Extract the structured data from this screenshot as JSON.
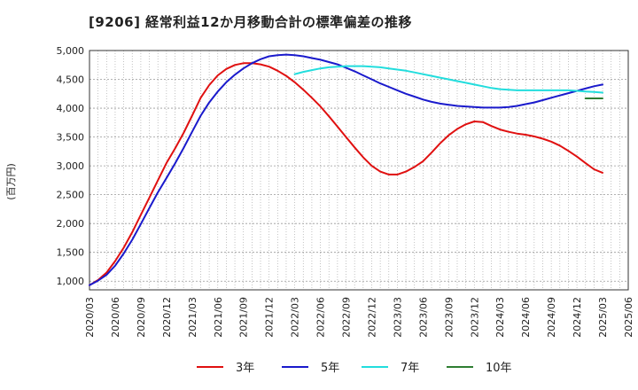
{
  "title": "[9206]  経常利益12か月移動合計の標準偏差の推移",
  "chart_data": {
    "type": "line",
    "title": "[9206]  経常利益12か月移動合計の標準偏差の推移",
    "ylabel": "(百万円)",
    "xlabel": "",
    "ylim": [
      850,
      5000
    ],
    "y_ticks": [
      1000,
      1500,
      2000,
      2500,
      3000,
      3500,
      4000,
      4500,
      5000
    ],
    "y_tick_labels": [
      "1,000",
      "1,500",
      "2,000",
      "2,500",
      "3,000",
      "3,500",
      "4,000",
      "4,500",
      "5,000"
    ],
    "x_ticks": [
      "2020/03",
      "2020/06",
      "2020/09",
      "2020/12",
      "2021/03",
      "2021/06",
      "2021/09",
      "2021/12",
      "2022/03",
      "2022/06",
      "2022/09",
      "2022/12",
      "2023/03",
      "2023/06",
      "2023/09",
      "2023/12",
      "2024/03",
      "2024/06",
      "2024/09",
      "2024/12",
      "2025/03",
      "2025/06"
    ],
    "grid": true,
    "legend_position": "bottom",
    "series": [
      {
        "name": "3年",
        "color": "#e01010",
        "points": [
          [
            "2020/03",
            930
          ],
          [
            "2020/04",
            1020
          ],
          [
            "2020/05",
            1150
          ],
          [
            "2020/06",
            1350
          ],
          [
            "2020/07",
            1580
          ],
          [
            "2020/08",
            1850
          ],
          [
            "2020/09",
            2150
          ],
          [
            "2020/10",
            2450
          ],
          [
            "2020/11",
            2750
          ],
          [
            "2020/12",
            3050
          ],
          [
            "2021/01",
            3300
          ],
          [
            "2021/02",
            3570
          ],
          [
            "2021/03",
            3870
          ],
          [
            "2021/04",
            4180
          ],
          [
            "2021/05",
            4400
          ],
          [
            "2021/06",
            4570
          ],
          [
            "2021/07",
            4680
          ],
          [
            "2021/08",
            4750
          ],
          [
            "2021/09",
            4780
          ],
          [
            "2021/10",
            4780
          ],
          [
            "2021/11",
            4760
          ],
          [
            "2021/12",
            4720
          ],
          [
            "2022/01",
            4650
          ],
          [
            "2022/02",
            4560
          ],
          [
            "2022/03",
            4450
          ],
          [
            "2022/04",
            4320
          ],
          [
            "2022/05",
            4180
          ],
          [
            "2022/06",
            4030
          ],
          [
            "2022/07",
            3860
          ],
          [
            "2022/08",
            3680
          ],
          [
            "2022/09",
            3500
          ],
          [
            "2022/10",
            3320
          ],
          [
            "2022/11",
            3150
          ],
          [
            "2022/12",
            3000
          ],
          [
            "2023/01",
            2900
          ],
          [
            "2023/02",
            2850
          ],
          [
            "2023/03",
            2850
          ],
          [
            "2023/04",
            2900
          ],
          [
            "2023/05",
            2980
          ],
          [
            "2023/06",
            3080
          ],
          [
            "2023/07",
            3230
          ],
          [
            "2023/08",
            3390
          ],
          [
            "2023/09",
            3530
          ],
          [
            "2023/10",
            3640
          ],
          [
            "2023/11",
            3720
          ],
          [
            "2023/12",
            3770
          ],
          [
            "2024/01",
            3760
          ],
          [
            "2024/02",
            3690
          ],
          [
            "2024/03",
            3630
          ],
          [
            "2024/04",
            3590
          ],
          [
            "2024/05",
            3560
          ],
          [
            "2024/06",
            3540
          ],
          [
            "2024/07",
            3510
          ],
          [
            "2024/08",
            3470
          ],
          [
            "2024/09",
            3420
          ],
          [
            "2024/10",
            3350
          ],
          [
            "2024/11",
            3260
          ],
          [
            "2024/12",
            3160
          ],
          [
            "2025/01",
            3050
          ],
          [
            "2025/02",
            2940
          ],
          [
            "2025/03",
            2880
          ]
        ]
      },
      {
        "name": "5年",
        "color": "#1a1acc",
        "points": [
          [
            "2020/03",
            930
          ],
          [
            "2020/04",
            1010
          ],
          [
            "2020/05",
            1110
          ],
          [
            "2020/06",
            1270
          ],
          [
            "2020/07",
            1480
          ],
          [
            "2020/08",
            1720
          ],
          [
            "2020/09",
            1990
          ],
          [
            "2020/10",
            2270
          ],
          [
            "2020/11",
            2540
          ],
          [
            "2020/12",
            2790
          ],
          [
            "2021/01",
            3040
          ],
          [
            "2021/02",
            3310
          ],
          [
            "2021/03",
            3590
          ],
          [
            "2021/04",
            3870
          ],
          [
            "2021/05",
            4100
          ],
          [
            "2021/06",
            4290
          ],
          [
            "2021/07",
            4450
          ],
          [
            "2021/08",
            4580
          ],
          [
            "2021/09",
            4690
          ],
          [
            "2021/10",
            4780
          ],
          [
            "2021/11",
            4850
          ],
          [
            "2021/12",
            4900
          ],
          [
            "2022/01",
            4920
          ],
          [
            "2022/02",
            4930
          ],
          [
            "2022/03",
            4920
          ],
          [
            "2022/04",
            4900
          ],
          [
            "2022/05",
            4870
          ],
          [
            "2022/06",
            4840
          ],
          [
            "2022/07",
            4800
          ],
          [
            "2022/08",
            4760
          ],
          [
            "2022/09",
            4700
          ],
          [
            "2022/10",
            4640
          ],
          [
            "2022/11",
            4570
          ],
          [
            "2022/12",
            4500
          ],
          [
            "2023/01",
            4430
          ],
          [
            "2023/02",
            4370
          ],
          [
            "2023/03",
            4310
          ],
          [
            "2023/04",
            4250
          ],
          [
            "2023/05",
            4200
          ],
          [
            "2023/06",
            4150
          ],
          [
            "2023/07",
            4110
          ],
          [
            "2023/08",
            4080
          ],
          [
            "2023/09",
            4060
          ],
          [
            "2023/10",
            4040
          ],
          [
            "2023/11",
            4030
          ],
          [
            "2023/12",
            4020
          ],
          [
            "2024/01",
            4010
          ],
          [
            "2024/02",
            4010
          ],
          [
            "2024/03",
            4010
          ],
          [
            "2024/04",
            4020
          ],
          [
            "2024/05",
            4040
          ],
          [
            "2024/06",
            4070
          ],
          [
            "2024/07",
            4100
          ],
          [
            "2024/08",
            4140
          ],
          [
            "2024/09",
            4180
          ],
          [
            "2024/10",
            4220
          ],
          [
            "2024/11",
            4260
          ],
          [
            "2024/12",
            4300
          ],
          [
            "2025/01",
            4340
          ],
          [
            "2025/02",
            4380
          ],
          [
            "2025/03",
            4410
          ]
        ]
      },
      {
        "name": "7年",
        "color": "#22dddd",
        "points": [
          [
            "2022/03",
            4590
          ],
          [
            "2022/04",
            4630
          ],
          [
            "2022/05",
            4660
          ],
          [
            "2022/06",
            4690
          ],
          [
            "2022/07",
            4710
          ],
          [
            "2022/08",
            4720
          ],
          [
            "2022/09",
            4730
          ],
          [
            "2022/10",
            4730
          ],
          [
            "2022/11",
            4730
          ],
          [
            "2022/12",
            4720
          ],
          [
            "2023/01",
            4710
          ],
          [
            "2023/02",
            4690
          ],
          [
            "2023/03",
            4670
          ],
          [
            "2023/04",
            4650
          ],
          [
            "2023/05",
            4620
          ],
          [
            "2023/06",
            4590
          ],
          [
            "2023/07",
            4560
          ],
          [
            "2023/08",
            4530
          ],
          [
            "2023/09",
            4500
          ],
          [
            "2023/10",
            4470
          ],
          [
            "2023/11",
            4440
          ],
          [
            "2023/12",
            4410
          ],
          [
            "2024/01",
            4380
          ],
          [
            "2024/02",
            4350
          ],
          [
            "2024/03",
            4330
          ],
          [
            "2024/04",
            4320
          ],
          [
            "2024/05",
            4310
          ],
          [
            "2024/06",
            4310
          ],
          [
            "2024/07",
            4310
          ],
          [
            "2024/08",
            4310
          ],
          [
            "2024/09",
            4310
          ],
          [
            "2024/10",
            4310
          ],
          [
            "2024/11",
            4310
          ],
          [
            "2024/12",
            4300
          ],
          [
            "2025/01",
            4290
          ],
          [
            "2025/02",
            4280
          ],
          [
            "2025/03",
            4270
          ]
        ]
      },
      {
        "name": "10年",
        "color": "#2e7d32",
        "points": [
          [
            "2025/01",
            4170
          ],
          [
            "2025/02",
            4170
          ],
          [
            "2025/03",
            4170
          ]
        ]
      }
    ]
  }
}
